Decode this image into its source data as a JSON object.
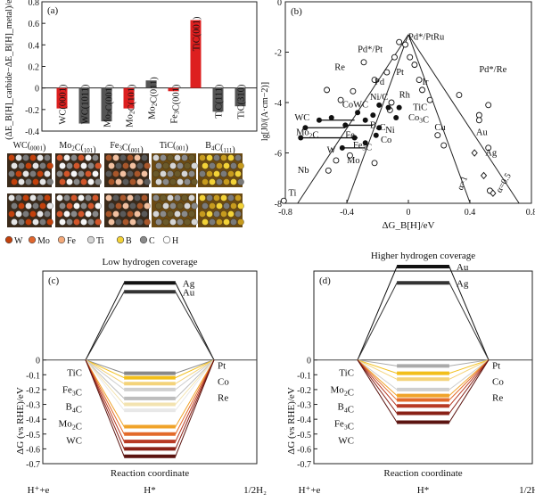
{
  "chart_data": [
    {
      "panel": "(a)",
      "type": "bar",
      "ylabel": "(ΔE_B[H]_carbide−ΔE_B[H]_metal)/eV",
      "ylim": [
        -0.4,
        0.8
      ],
      "yticks": [
        "-0.4",
        "-0.2",
        "0",
        "0.2",
        "0.4",
        "0.6",
        "0.8"
      ],
      "categories": [
        "WC(0001)",
        "WC(1011)",
        "Mo2C(001)",
        "Mo2C(101)",
        "Mo2C(011)",
        "Fe3C(001)",
        "TiC(001)",
        "TiC(111)",
        "TiC(310)"
      ],
      "values": [
        -0.19,
        -0.33,
        -0.31,
        -0.19,
        0.07,
        -0.03,
        0.63,
        -0.22,
        -0.17
      ],
      "colors": [
        "#dd1f1f",
        "#555555",
        "#555555",
        "#dd1f1f",
        "#555555",
        "#dd1f1f",
        "#dd1f1f",
        "#555555",
        "#555555"
      ]
    },
    {
      "panel": "(b)",
      "type": "scatter",
      "xlabel": "ΔG_B[H]/eV",
      "ylabel": "lg[J0/(A·cm−2)]",
      "xlim": [
        -0.8,
        0.8
      ],
      "ylim": [
        -8,
        0
      ],
      "xticks": [
        "-0.8",
        "-0.4",
        "0",
        "0.4",
        "0.8"
      ],
      "yticks": [
        "-8",
        "-6",
        "-4",
        "-2",
        "0"
      ],
      "alpha_labels": [
        "α=1",
        "α=0.5"
      ],
      "open_points": [
        {
          "x": -0.81,
          "y": -7.9
        },
        {
          "x": -0.52,
          "y": -6.7
        },
        {
          "x": -0.47,
          "y": -6.3
        },
        {
          "x": -0.38,
          "y": -6.1
        },
        {
          "x": -0.22,
          "y": -6.4
        },
        {
          "x": -0.53,
          "y": -3.5
        },
        {
          "x": -0.44,
          "y": -3.9
        },
        {
          "x": -0.36,
          "y": -3.55
        },
        {
          "x": -0.29,
          "y": -2.4
        },
        {
          "x": -0.22,
          "y": -3.1
        },
        {
          "x": -0.14,
          "y": -2.8
        },
        {
          "x": -0.09,
          "y": -2.2
        },
        {
          "x": -0.06,
          "y": -1.6
        },
        {
          "x": -0.02,
          "y": -1.7
        },
        {
          "x": 0.01,
          "y": -2.2
        },
        {
          "x": 0.04,
          "y": -2.5
        },
        {
          "x": 0.07,
          "y": -3.1
        },
        {
          "x": 0.09,
          "y": -3.5
        },
        {
          "x": 0.14,
          "y": -3.9
        },
        {
          "x": 0.19,
          "y": -5.3
        },
        {
          "x": 0.23,
          "y": -5.7
        },
        {
          "x": 0.33,
          "y": -3.7
        },
        {
          "x": 0.46,
          "y": -4.5
        },
        {
          "x": 0.52,
          "y": -5.8
        },
        {
          "x": 0.46,
          "y": -4.7
        },
        {
          "x": 0.53,
          "y": -7.5
        },
        {
          "x": 0.52,
          "y": -4.1
        },
        {
          "x": -0.12,
          "y": -4.3
        },
        {
          "x": -0.11,
          "y": -4.0
        }
      ],
      "filled_points": [
        {
          "x": -0.58,
          "y": -4.7
        },
        {
          "x": -0.67,
          "y": -5.0
        },
        {
          "x": -0.7,
          "y": -5.4
        },
        {
          "x": -0.5,
          "y": -4.6
        },
        {
          "x": -0.41,
          "y": -4.9
        },
        {
          "x": -0.33,
          "y": -4.4
        },
        {
          "x": -0.28,
          "y": -4.7
        },
        {
          "x": -0.23,
          "y": -4.5
        },
        {
          "x": -0.19,
          "y": -5.0
        },
        {
          "x": -0.21,
          "y": -5.3
        },
        {
          "x": -0.28,
          "y": -5.6
        },
        {
          "x": -0.35,
          "y": -5.4
        },
        {
          "x": -0.43,
          "y": -5.8
        },
        {
          "x": -0.19,
          "y": -4.1
        },
        {
          "x": -0.13,
          "y": -4.2
        },
        {
          "x": -0.08,
          "y": -4.6
        },
        {
          "x": -0.06,
          "y": -4.2
        }
      ],
      "open_diamonds": [
        {
          "x": 0.43,
          "y": -6.0
        },
        {
          "x": 0.49,
          "y": -6.9
        },
        {
          "x": 0.55,
          "y": -7.6
        }
      ],
      "labels": [
        {
          "text": "Pd*/PtRu",
          "x": 0.0,
          "y": -1.5
        },
        {
          "text": "Pd*/Pt",
          "x": -0.33,
          "y": -2.0
        },
        {
          "text": "Re",
          "x": -0.48,
          "y": -2.7
        },
        {
          "text": "Pt",
          "x": -0.08,
          "y": -2.9
        },
        {
          "text": "Pd",
          "x": -0.22,
          "y": -3.3
        },
        {
          "text": "Ir",
          "x": 0.09,
          "y": -3.3
        },
        {
          "text": "Rh",
          "x": -0.06,
          "y": -3.8
        },
        {
          "text": "Ni/C",
          "x": -0.25,
          "y": -3.9
        },
        {
          "text": "TiC",
          "x": 0.03,
          "y": -4.3
        },
        {
          "text": "CoWC",
          "x": -0.43,
          "y": -4.2
        },
        {
          "text": "WC",
          "x": -0.74,
          "y": -4.7
        },
        {
          "text": "Co3C",
          "x": 0.0,
          "y": -4.7
        },
        {
          "text": "B4C",
          "x": -0.25,
          "y": -5.0
        },
        {
          "text": "Mo2C",
          "x": -0.73,
          "y": -5.3
        },
        {
          "text": "Ni",
          "x": -0.15,
          "y": -5.2
        },
        {
          "text": "Fe",
          "x": -0.41,
          "y": -5.4
        },
        {
          "text": "Cu",
          "x": 0.17,
          "y": -5.1
        },
        {
          "text": "Co",
          "x": -0.18,
          "y": -5.6
        },
        {
          "text": "Fe3C",
          "x": -0.36,
          "y": -5.8
        },
        {
          "text": "W",
          "x": -0.53,
          "y": -6.0
        },
        {
          "text": "Mo",
          "x": -0.4,
          "y": -6.4
        },
        {
          "text": "Pd*/Re",
          "x": 0.46,
          "y": -2.8
        },
        {
          "text": "Au",
          "x": 0.44,
          "y": -5.3
        },
        {
          "text": "Ag",
          "x": 0.5,
          "y": -6.1
        },
        {
          "text": "Nb",
          "x": -0.72,
          "y": -6.8
        },
        {
          "text": "Ti",
          "x": -0.78,
          "y": -7.7
        }
      ]
    },
    {
      "panel": "(c)",
      "type": "line",
      "title": "Low hydrogen coverage",
      "xlabel": "Reaction coordinate",
      "ylabel": "ΔG (vs RHE)/eV",
      "ylim": [
        -0.7,
        0.6
      ],
      "yticks": [
        "-0.7",
        "-0.6",
        "-0.5",
        "-0.4",
        "-0.3",
        "-0.2",
        "-0.1",
        "0"
      ],
      "xcategories": [
        "H⁺+e",
        "H*",
        "1/2H₂"
      ],
      "series": [
        {
          "name": "Ag",
          "value": 0.52,
          "color": "#111111"
        },
        {
          "name": "Au",
          "value": 0.46,
          "color": "#333333"
        },
        {
          "name": "Pt",
          "value": -0.09,
          "color": "#888888"
        },
        {
          "name": "TiC",
          "value": -0.12,
          "color": "#f2bf1b"
        },
        {
          "name": "",
          "value": -0.16,
          "color": "#f4d37a"
        },
        {
          "name": "Co",
          "value": -0.2,
          "color": "#cfcfcf"
        },
        {
          "name": "Fe3C",
          "value": -0.26,
          "color": "#bdbdbd"
        },
        {
          "name": "Re",
          "value": -0.3,
          "color": "#f3e3b0"
        },
        {
          "name": "B4C",
          "value": -0.34,
          "color": "#e8e8e8"
        },
        {
          "name": "",
          "value": -0.45,
          "color": "#f0a32a"
        },
        {
          "name": "Mo2C",
          "value": -0.5,
          "color": "#e36a2a"
        },
        {
          "name": "",
          "value": -0.55,
          "color": "#b83a24"
        },
        {
          "name": "",
          "value": -0.6,
          "color": "#8a2117"
        },
        {
          "name": "WC",
          "value": -0.65,
          "color": "#5b1410"
        }
      ],
      "left_labels": [
        "TiC",
        "Fe3C",
        "B4C",
        "Mo2C",
        "WC"
      ],
      "right_labels": [
        "Pt",
        "Co",
        "Re"
      ],
      "top_labels": [
        "Ag",
        "Au"
      ]
    },
    {
      "panel": "(d)",
      "type": "line",
      "title": "Higher hydrogen coverage",
      "xlabel": "Reaction coordinate",
      "ylabel": "ΔG (vs RHE)/eV",
      "ylim": [
        -0.7,
        0.6
      ],
      "yticks": [
        "-0.7",
        "-0.6",
        "-0.5",
        "-0.4",
        "-0.3",
        "-0.2",
        "-0.1",
        "0"
      ],
      "xcategories": [
        "H⁺+e",
        "H*",
        "1/2H₂"
      ],
      "series": [
        {
          "name": "Au",
          "value": 0.63,
          "color": "#111111"
        },
        {
          "name": "Ag",
          "value": 0.52,
          "color": "#333333"
        },
        {
          "name": "Pt",
          "value": -0.04,
          "color": "#aaaaaa"
        },
        {
          "name": "TiC",
          "value": -0.09,
          "color": "#f2bf1b"
        },
        {
          "name": "",
          "value": -0.13,
          "color": "#f4d37a"
        },
        {
          "name": "Mo2C",
          "value": -0.2,
          "color": "#cfcfcf"
        },
        {
          "name": "Co",
          "value": -0.24,
          "color": "#f0a32a"
        },
        {
          "name": "B4C",
          "value": -0.27,
          "color": "#e36a2a"
        },
        {
          "name": "Re",
          "value": -0.31,
          "color": "#b83a24"
        },
        {
          "name": "Fe3C",
          "value": -0.36,
          "color": "#8a2117"
        },
        {
          "name": "WC",
          "value": -0.42,
          "color": "#5b1410"
        }
      ],
      "left_labels": [
        "TiC",
        "Mo2C",
        "B4C",
        "Fe3C",
        "WC"
      ],
      "right_labels": [
        "Pt",
        "Co",
        "Re"
      ],
      "top_labels": [
        "Au",
        "Ag"
      ]
    }
  ],
  "structures": {
    "labels": [
      "WC(0001)",
      "Mo2C(101)",
      "Fe3C(001)",
      "TiC(001)",
      "B4C(111)"
    ],
    "legend": [
      {
        "label": "W",
        "color": "#c2410c"
      },
      {
        "label": "Mo",
        "color": "#e0662e"
      },
      {
        "label": "Fe",
        "color": "#f4a97a"
      },
      {
        "label": "Ti",
        "color": "#d6d6d6"
      },
      {
        "label": "B",
        "color": "#f3d237"
      },
      {
        "label": "C",
        "color": "#8a8a8a"
      },
      {
        "label": "H",
        "color": "#ffffff"
      }
    ]
  }
}
